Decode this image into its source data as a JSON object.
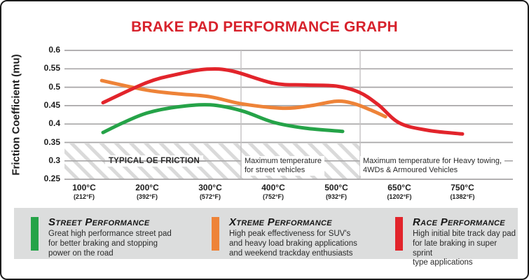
{
  "title": {
    "text": "BRAKE PAD PERFORMANCE GRAPH",
    "color": "#d7222c"
  },
  "colors": {
    "street": "#25a348",
    "xtreme": "#ee8338",
    "race": "#e2242b",
    "grid": "#a8a6a7",
    "legend_background": "#dcdddd"
  },
  "chart_data": {
    "type": "line",
    "title": "BRAKE PAD PERFORMANCE GRAPH",
    "xlabel": "",
    "ylabel": "Friction Coefficient (mu)",
    "ylim": [
      0.25,
      0.6
    ],
    "grid": true,
    "legend_position": "bottom",
    "y_ticks": [
      "0.6",
      "0.55",
      "0.5",
      "0.45",
      "0.4",
      "0.35",
      "0.3",
      "0.25"
    ],
    "x_ticks": [
      {
        "c": "100°C",
        "f": "(212°F)"
      },
      {
        "c": "200°C",
        "f": "(392°F)"
      },
      {
        "c": "300°C",
        "f": "(572°F)"
      },
      {
        "c": "400°C",
        "f": "(752°F)"
      },
      {
        "c": "500°C",
        "f": "(932°F)"
      },
      {
        "c": "650°C",
        "f": "(1202°F)"
      },
      {
        "c": "750°C",
        "f": "(1382°F)"
      }
    ],
    "series": [
      {
        "name": "Street Performance",
        "color": "#25a348",
        "points": [
          [
            130,
            0.377
          ],
          [
            160,
            0.402
          ],
          [
            200,
            0.43
          ],
          [
            250,
            0.447
          ],
          [
            300,
            0.452
          ],
          [
            350,
            0.436
          ],
          [
            400,
            0.405
          ],
          [
            450,
            0.389
          ],
          [
            515,
            0.38
          ]
        ]
      },
      {
        "name": "Xtreme Performance",
        "color": "#ee8338",
        "points": [
          [
            128,
            0.518
          ],
          [
            200,
            0.492
          ],
          [
            250,
            0.482
          ],
          [
            300,
            0.474
          ],
          [
            350,
            0.455
          ],
          [
            415,
            0.443
          ],
          [
            460,
            0.45
          ],
          [
            500,
            0.462
          ],
          [
            540,
            0.456
          ],
          [
            580,
            0.439
          ],
          [
            617,
            0.42
          ]
        ]
      },
      {
        "name": "Race Performance",
        "color": "#e2242b",
        "points": [
          [
            130,
            0.458
          ],
          [
            200,
            0.513
          ],
          [
            250,
            0.536
          ],
          [
            295,
            0.549
          ],
          [
            335,
            0.544
          ],
          [
            400,
            0.511
          ],
          [
            450,
            0.506
          ],
          [
            500,
            0.503
          ],
          [
            555,
            0.486
          ],
          [
            600,
            0.452
          ],
          [
            650,
            0.403
          ],
          [
            695,
            0.383
          ],
          [
            750,
            0.373
          ]
        ]
      }
    ],
    "annotations": {
      "typical_oe": "TYPICAL OE FRICTION",
      "oe_band": [
        0.25,
        0.35
      ],
      "street_max_line1": "Maximum temperature",
      "street_max_line2": "for street vehicles",
      "heavy_max_line1": "Maximum temperature for Heavy towing,",
      "heavy_max_line2": "4WDs & Armoured Vehicles"
    }
  },
  "legend": {
    "items": [
      {
        "title": "Street Performance",
        "color": "#25a348",
        "desc": "Great high performance street pad\nfor better braking and stopping\npower on the road"
      },
      {
        "title": "Xtreme Performance",
        "color": "#ee8338",
        "desc": "High peak effectiveness for SUV's\nand heavy load braking applications\nand weekend trackday enthusiasts"
      },
      {
        "title": "Race Performance",
        "color": "#e2242b",
        "desc": "High initial bite track day pad\nfor late braking in super sprint\ntype applications"
      }
    ]
  }
}
